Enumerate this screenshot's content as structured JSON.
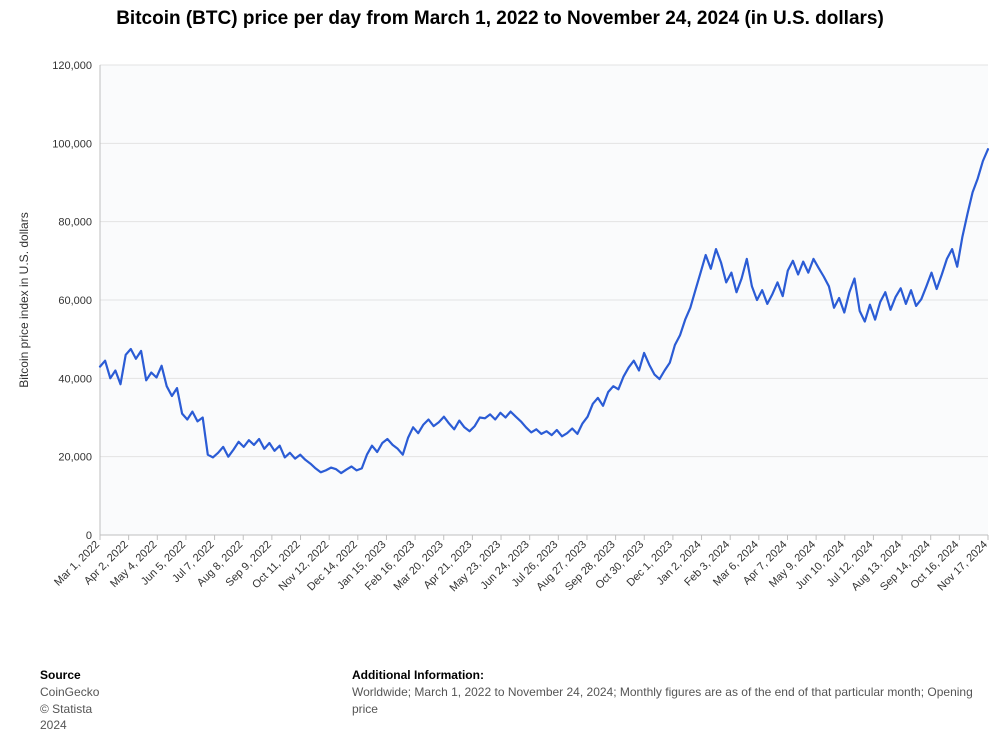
{
  "chart": {
    "type": "line",
    "title": "Bitcoin (BTC) price per day from March 1, 2022 to November 24, 2024 (in U.S. dollars)",
    "title_fontsize": 19,
    "title_fontweight": 700,
    "ylabel": "Bitcoin price index in U.S. dollars",
    "background_color": "#ffffff",
    "plot_background_color": "#fafbfc",
    "grid_color": "#e3e3e3",
    "axis_color": "#bfbfbf",
    "line_color": "#2b5cd5",
    "line_width": 2.2,
    "label_fontsize": 12,
    "tick_fontsize": 11,
    "yaxis": {
      "min": 0,
      "max": 120000,
      "tick_step": 20000,
      "tick_labels": [
        "0",
        "20,000",
        "40,000",
        "60,000",
        "80,000",
        "100,000",
        "120,000"
      ]
    },
    "xaxis": {
      "labels": [
        "Mar 1, 2022",
        "Apr 2, 2022",
        "May 4, 2022",
        "Jun 5, 2022",
        "Jul 7, 2022",
        "Aug 8, 2022",
        "Sep 9, 2022",
        "Oct 11, 2022",
        "Nov 12, 2022",
        "Dec 14, 2022",
        "Jan 15, 2023",
        "Feb 16, 2023",
        "Mar 20, 2023",
        "Apr 21, 2023",
        "May 23, 2023",
        "Jun 24, 2023",
        "Jul 26, 2023",
        "Aug 27, 2023",
        "Sep 28, 2023",
        "Oct 30, 2023",
        "Dec 1, 2023",
        "Jan 2, 2024",
        "Feb 3, 2024",
        "Mar 6, 2024",
        "Apr 7, 2024",
        "May 9, 2024",
        "Jun 10, 2024",
        "Jul 12, 2024",
        "Aug 13, 2024",
        "Sep 14, 2024",
        "Oct 16, 2024",
        "Nov 17, 2024"
      ]
    },
    "series": [
      43000,
      44500,
      40000,
      42000,
      38500,
      46000,
      47500,
      45000,
      47000,
      39500,
      41500,
      40200,
      43200,
      38000,
      35500,
      37500,
      31000,
      29500,
      31500,
      29000,
      30000,
      20500,
      19800,
      21000,
      22500,
      20000,
      21800,
      23800,
      22500,
      24200,
      23000,
      24500,
      22000,
      23500,
      21500,
      22800,
      19800,
      21000,
      19500,
      20500,
      19200,
      18200,
      17000,
      16000,
      16500,
      17200,
      16800,
      15800,
      16700,
      17500,
      16500,
      17000,
      20500,
      22800,
      21200,
      23500,
      24500,
      23000,
      22000,
      20500,
      24800,
      27500,
      26000,
      28200,
      29500,
      27800,
      28800,
      30200,
      28500,
      27000,
      29200,
      27500,
      26500,
      27800,
      30000,
      29800,
      30800,
      29500,
      31200,
      30000,
      31500,
      30200,
      29000,
      27500,
      26200,
      27000,
      25800,
      26500,
      25500,
      26800,
      25200,
      26000,
      27200,
      25800,
      28500,
      30200,
      33500,
      35000,
      33000,
      36500,
      38000,
      37200,
      40500,
      42800,
      44500,
      42000,
      46500,
      43500,
      41000,
      39800,
      42000,
      44000,
      48500,
      51000,
      55000,
      58000,
      62500,
      67000,
      71500,
      68000,
      73000,
      69500,
      64500,
      67000,
      62000,
      65500,
      70500,
      63500,
      60000,
      62500,
      59000,
      61500,
      64500,
      61000,
      67500,
      70000,
      66500,
      69800,
      67000,
      70500,
      68200,
      66000,
      63500,
      58000,
      60500,
      56800,
      62000,
      65500,
      57200,
      54500,
      58800,
      55000,
      59500,
      62000,
      57500,
      60800,
      63000,
      59000,
      62500,
      58500,
      60200,
      63500,
      67000,
      62800,
      66500,
      70500,
      73000,
      68500,
      76000,
      82000,
      87500,
      91000,
      95500,
      98500
    ]
  },
  "footer": {
    "source_header": "Source",
    "source_line1": "CoinGecko",
    "source_line2": "© Statista 2024",
    "info_header": "Additional Information:",
    "info_line1": "Worldwide; March 1, 2022 to November 24, 2024; Monthly figures are as of the end of that particular month; Opening price"
  }
}
